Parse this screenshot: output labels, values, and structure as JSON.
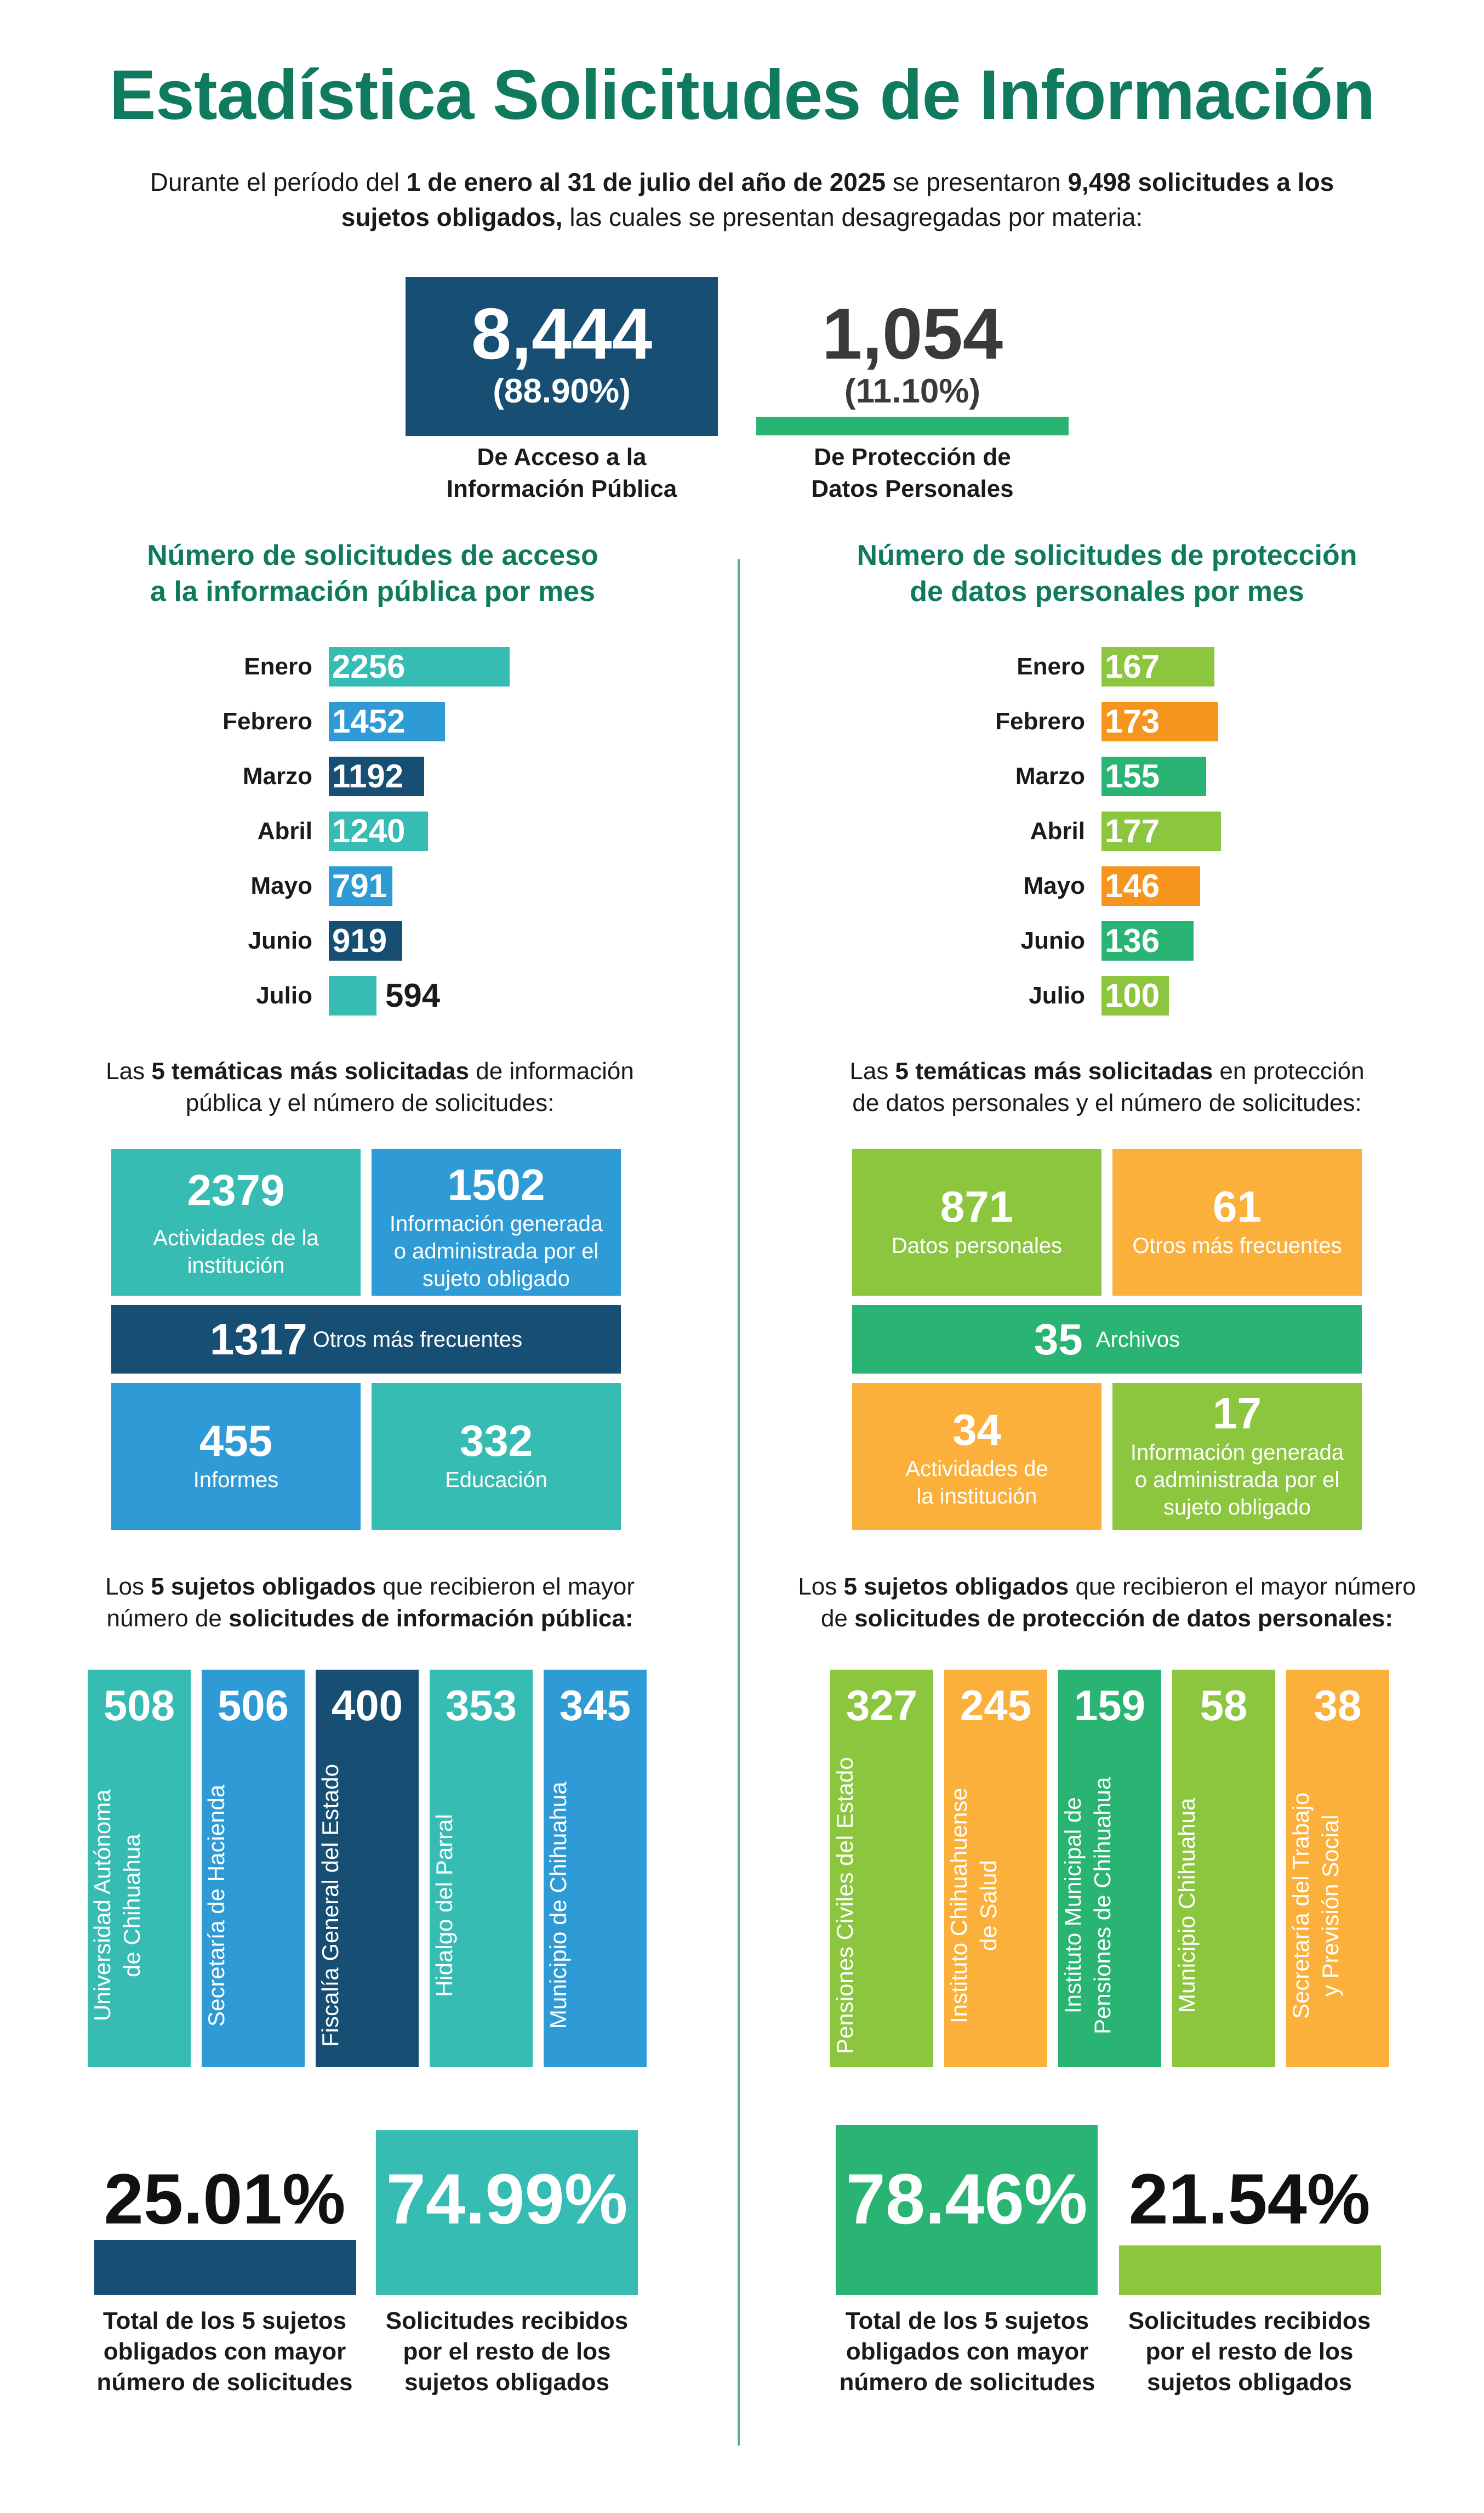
{
  "title": "Estadística Solicitudes de Información",
  "intro": {
    "p1": "Durante el período del ",
    "b1": "1 de enero al 31 de julio del año de 2025",
    "p2": " se presentaron ",
    "b2": "9,498 solicitudes a los sujetos obligados,",
    "p3": " las cuales se presentan desagregadas por materia:"
  },
  "totals": {
    "acceso": {
      "value": "8,444",
      "pct": "(88.90%)",
      "label_1": "De Acceso a la",
      "label_2": "Información Pública",
      "color": "#174e73"
    },
    "proteccion": {
      "value": "1,054",
      "pct": "(11.10%)",
      "label_1": "De Protección de",
      "label_2": "Datos Personales",
      "color": "#29b473"
    }
  },
  "acceso_mes": {
    "title_1": "Número de solicitudes de acceso",
    "title_2": "a la información pública por mes",
    "items": [
      {
        "month": "Enero",
        "value": 2256,
        "color": "#37bcb3"
      },
      {
        "month": "Febrero",
        "value": 1452,
        "color": "#2f9bd6"
      },
      {
        "month": "Marzo",
        "value": 1192,
        "color": "#174e73"
      },
      {
        "month": "Abril",
        "value": 1240,
        "color": "#37bcb3"
      },
      {
        "month": "Mayo",
        "value": 791,
        "color": "#2f9bd6"
      },
      {
        "month": "Junio",
        "value": 919,
        "color": "#174e73"
      },
      {
        "month": "Julio",
        "value": 594,
        "color": "#37bcb3"
      }
    ]
  },
  "proteccion_mes": {
    "title_1": "Número de solicitudes de protección",
    "title_2": "de datos personales por mes",
    "items": [
      {
        "month": "Enero",
        "value": 167,
        "color": "#8cc63f"
      },
      {
        "month": "Febrero",
        "value": 173,
        "color": "#f7941d"
      },
      {
        "month": "Marzo",
        "value": 155,
        "color": "#29b473"
      },
      {
        "month": "Abril",
        "value": 177,
        "color": "#8cc63f"
      },
      {
        "month": "Mayo",
        "value": 146,
        "color": "#f7941d"
      },
      {
        "month": "Junio",
        "value": 136,
        "color": "#29b473"
      },
      {
        "month": "Julio",
        "value": 100,
        "color": "#8cc63f"
      }
    ]
  },
  "tematicas_acceso": {
    "intro_a": "Las ",
    "intro_b": "5 temáticas más solicitadas",
    "intro_c": " de información",
    "intro_d": "pública y el número de solicitudes:",
    "t1": {
      "num": "2379",
      "label_1": "Actividades de la",
      "label_2": "institución"
    },
    "t2": {
      "num": "1502",
      "label_1": "Información generada",
      "label_2": "o administrada por el",
      "label_3": "sujeto obligado"
    },
    "t3": {
      "num": "1317",
      "label": "Otros más frecuentes"
    },
    "t4": {
      "num": "455",
      "label": "Informes"
    },
    "t5": {
      "num": "332",
      "label": "Educación"
    }
  },
  "tematicas_proteccion": {
    "intro_a": "Las ",
    "intro_b": "5 temáticas más solicitadas",
    "intro_c": " en protección",
    "intro_d": "de datos personales y el número de solicitudes:",
    "t1": {
      "num": "871",
      "label": "Datos personales"
    },
    "t2": {
      "num": "61",
      "label": "Otros más frecuentes"
    },
    "t3": {
      "num": "35",
      "label": "Archivos"
    },
    "t4": {
      "num": "34",
      "label_1": "Actividades de",
      "label_2": "la institución"
    },
    "t5": {
      "num": "17",
      "label_1": "Información generada",
      "label_2": "o administrada por el",
      "label_3": "sujeto obligado"
    }
  },
  "sujetos_acceso": {
    "intro_a": "Los ",
    "intro_b": "5 sujetos obligados",
    "intro_c": " que recibieron el mayor",
    "intro_d": "número de ",
    "intro_e": "solicitudes de información pública:",
    "items": [
      {
        "num": "508",
        "name_1": "Universidad Autónoma",
        "name_2": "de Chihuahua",
        "color": "#37bcb3"
      },
      {
        "num": "506",
        "name_1": "Secretaría de Hacienda",
        "name_2": "",
        "color": "#2f9bd6"
      },
      {
        "num": "400",
        "name_1": "Fiscalía General del Estado",
        "name_2": "",
        "color": "#174e73"
      },
      {
        "num": "353",
        "name_1": "Hidalgo del Parral",
        "name_2": "",
        "color": "#37bcb3"
      },
      {
        "num": "345",
        "name_1": "Municipio de Chihuahua",
        "name_2": "",
        "color": "#2f9bd6"
      }
    ]
  },
  "sujetos_proteccion": {
    "intro_a": "Los ",
    "intro_b": "5 sujetos obligados",
    "intro_c": " que recibieron el mayor número",
    "intro_d": "de ",
    "intro_e": "solicitudes de protección de datos personales:",
    "items": [
      {
        "num": "327",
        "name_1": "Pensiones Civiles del Estado",
        "name_2": "",
        "color": "#8cc63f"
      },
      {
        "num": "245",
        "name_1": "Instituto Chihuahuense",
        "name_2": "de Salud",
        "color": "#fbb03b"
      },
      {
        "num": "159",
        "name_1": "Instituto Municipal de",
        "name_2": "Pensiones de Chihuahua",
        "color": "#29b473"
      },
      {
        "num": "58",
        "name_1": "Municipio Chihuahua",
        "name_2": "",
        "color": "#8cc63f"
      },
      {
        "num": "38",
        "name_1": "Secretaría del Trabajo",
        "name_2": "y Previsión Social",
        "color": "#fbb03b"
      }
    ]
  },
  "porcentajes_acceso": {
    "left": {
      "value": "25.01%",
      "cap_1": "Total de los 5 sujetos",
      "cap_2": "obligados con mayor",
      "cap_3": "número de solicitudes",
      "color": "#174e73"
    },
    "right": {
      "value": "74.99%",
      "cap_1": "Solicitudes recibidos",
      "cap_2": "por el resto de los",
      "cap_3": "sujetos obligados",
      "color": "#37bcb3"
    }
  },
  "porcentajes_proteccion": {
    "left": {
      "value": "78.46%",
      "cap_1": "Total de los 5 sujetos",
      "cap_2": "obligados con mayor",
      "cap_3": "número de solicitudes",
      "color": "#29b473"
    },
    "right": {
      "value": "21.54%",
      "cap_1": "Solicitudes recibidos",
      "cap_2": "por el resto de los",
      "cap_3": "sujetos obligados",
      "color": "#8cc63f"
    }
  }
}
